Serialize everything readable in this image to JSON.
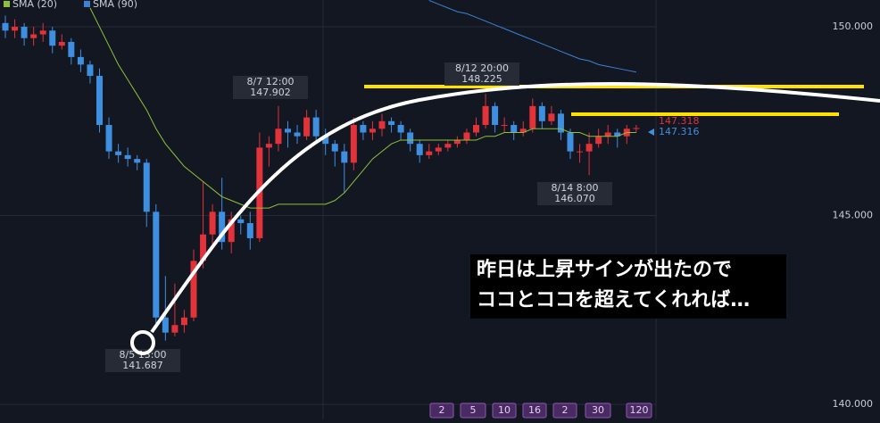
{
  "chart_data": {
    "type": "candlestick",
    "open": [
      150.1,
      149.9,
      150.0,
      149.7,
      149.8,
      149.9,
      149.5,
      149.6,
      149.2,
      149.0,
      148.7,
      147.4,
      146.7,
      146.6,
      146.5,
      146.4,
      145.1,
      142.3,
      141.9,
      142.1,
      142.3,
      143.8,
      144.5,
      145.1,
      144.3,
      144.9,
      144.8,
      144.4,
      146.8,
      146.9,
      147.3,
      147.2,
      147.1,
      147.6,
      147.1,
      146.9,
      146.7,
      146.4,
      147.4,
      147.2,
      147.3,
      147.5,
      147.4,
      147.2,
      146.9,
      146.6,
      146.7,
      146.8,
      146.9,
      147.0,
      147.2,
      147.4,
      147.9,
      147.4,
      147.4,
      147.2,
      147.3,
      147.9,
      147.5,
      147.7,
      147.2,
      146.7,
      146.7,
      146.9,
      147.1,
      147.2,
      147.1,
      147.3
    ],
    "high": [
      150.3,
      150.2,
      150.1,
      150.0,
      150.1,
      150.0,
      149.8,
      149.7,
      149.4,
      149.1,
      148.9,
      147.6,
      146.9,
      146.8,
      146.6,
      146.5,
      145.3,
      143.4,
      143.2,
      142.5,
      144.1,
      145.9,
      145.3,
      146.0,
      145.1,
      145.0,
      145.1,
      147.2,
      147.1,
      147.902,
      147.5,
      147.4,
      147.8,
      147.8,
      147.3,
      147.0,
      146.9,
      147.6,
      147.5,
      147.5,
      147.7,
      147.6,
      147.5,
      147.3,
      147.0,
      146.9,
      146.9,
      147.0,
      147.1,
      147.3,
      147.6,
      148.225,
      148.0,
      147.6,
      147.5,
      147.5,
      148.1,
      148.0,
      147.9,
      147.8,
      147.3,
      146.9,
      147.2,
      147.3,
      147.4,
      147.3,
      147.4,
      147.4
    ],
    "low": [
      149.7,
      149.7,
      149.5,
      149.5,
      149.6,
      149.3,
      149.4,
      149.0,
      148.8,
      148.5,
      147.2,
      146.5,
      146.4,
      146.3,
      146.2,
      144.7,
      142.1,
      141.687,
      141.8,
      141.9,
      142.2,
      143.6,
      144.2,
      144.1,
      144.0,
      144.5,
      144.1,
      144.3,
      146.3,
      146.7,
      146.8,
      146.9,
      147.0,
      146.9,
      146.6,
      146.3,
      145.6,
      146.2,
      147.0,
      147.0,
      147.1,
      147.2,
      147.0,
      146.7,
      146.4,
      146.5,
      146.6,
      146.7,
      146.8,
      146.9,
      147.1,
      147.3,
      147.2,
      147.2,
      147.0,
      147.1,
      147.2,
      147.3,
      147.4,
      147.0,
      146.5,
      146.4,
      146.07,
      146.8,
      146.9,
      146.8,
      146.9,
      147.2
    ],
    "close": [
      149.9,
      150.0,
      149.7,
      149.8,
      149.9,
      149.5,
      149.6,
      149.2,
      149.0,
      148.7,
      147.4,
      146.7,
      146.6,
      146.5,
      146.4,
      145.1,
      142.3,
      141.9,
      142.1,
      142.3,
      143.8,
      144.5,
      145.1,
      144.3,
      144.9,
      144.8,
      144.4,
      146.8,
      146.9,
      147.3,
      147.2,
      147.1,
      147.6,
      147.1,
      146.9,
      146.7,
      146.4,
      147.4,
      147.2,
      147.3,
      147.5,
      147.4,
      147.2,
      146.9,
      146.6,
      146.7,
      146.8,
      146.9,
      147.0,
      147.2,
      147.4,
      147.9,
      147.4,
      147.4,
      147.2,
      147.3,
      147.9,
      147.5,
      147.7,
      147.2,
      146.7,
      146.7,
      146.9,
      147.1,
      147.2,
      147.1,
      147.3,
      147.318
    ],
    "up_color": "#e2323a",
    "down_color": "#3f8fe0",
    "series": [
      {
        "name": "SMA (20)",
        "color": "#8fc03a",
        "values": [
          null,
          null,
          null,
          null,
          null,
          null,
          null,
          null,
          null,
          150.5,
          150.0,
          149.5,
          149.0,
          148.6,
          148.2,
          147.8,
          147.3,
          146.9,
          146.6,
          146.3,
          146.1,
          145.9,
          145.7,
          145.5,
          145.4,
          145.3,
          145.2,
          145.2,
          145.2,
          145.3,
          145.3,
          145.3,
          145.3,
          145.3,
          145.3,
          145.4,
          145.6,
          145.9,
          146.2,
          146.5,
          146.7,
          146.9,
          147.0,
          147.0,
          147.0,
          147.0,
          147.0,
          147.0,
          147.0,
          147.0,
          147.0,
          147.1,
          147.1,
          147.2,
          147.2,
          147.2,
          147.3,
          147.3,
          147.3,
          147.3,
          147.2,
          147.2,
          147.1,
          147.1,
          147.1,
          147.1,
          147.2,
          147.2
        ]
      },
      {
        "name": "SMA (90)",
        "color": "#3b82d6",
        "values": [
          null,
          null,
          null,
          null,
          null,
          null,
          null,
          null,
          null,
          null,
          null,
          null,
          null,
          null,
          null,
          null,
          null,
          null,
          null,
          null,
          null,
          null,
          null,
          null,
          null,
          null,
          null,
          null,
          null,
          null,
          null,
          null,
          null,
          null,
          null,
          null,
          null,
          null,
          null,
          null,
          null,
          null,
          null,
          null,
          null,
          150.7,
          150.6,
          150.5,
          150.4,
          150.35,
          150.25,
          150.15,
          150.05,
          149.95,
          149.85,
          149.75,
          149.65,
          149.55,
          149.45,
          149.35,
          149.25,
          149.15,
          149.1,
          149.0,
          148.95,
          148.9,
          148.85,
          148.8
        ]
      }
    ],
    "ylim": [
      139.6,
      150.71
    ],
    "yticks": [
      {
        "value": 150,
        "label": "150.000"
      },
      {
        "value": 145,
        "label": "145.000"
      },
      {
        "value": 140,
        "label": "140.000"
      }
    ],
    "grid": true,
    "price_tags": [
      {
        "value": 147.318,
        "label": "147.318",
        "color": "#e2323a"
      },
      {
        "value": 147.316,
        "label": "147.316",
        "color": "#3f8fe0"
      }
    ],
    "annotations": [
      {
        "label": "8/5 13:00",
        "value": 141.687,
        "value_label": "141.687"
      },
      {
        "label": "8/7 12:00",
        "value": 147.902,
        "value_label": "147.902"
      },
      {
        "label": "8/12 20:00",
        "value": 148.225,
        "value_label": "148.225"
      },
      {
        "label": "8/14 8:00",
        "value": 146.07,
        "value_label": "146.070"
      }
    ],
    "note_lines": [
      "昨日は上昇サインが出たので",
      "ココとココを超えてくれれば…"
    ],
    "timeframe_buttons": [
      "2",
      "5",
      "10",
      "16",
      "2",
      "30",
      "120"
    ]
  }
}
